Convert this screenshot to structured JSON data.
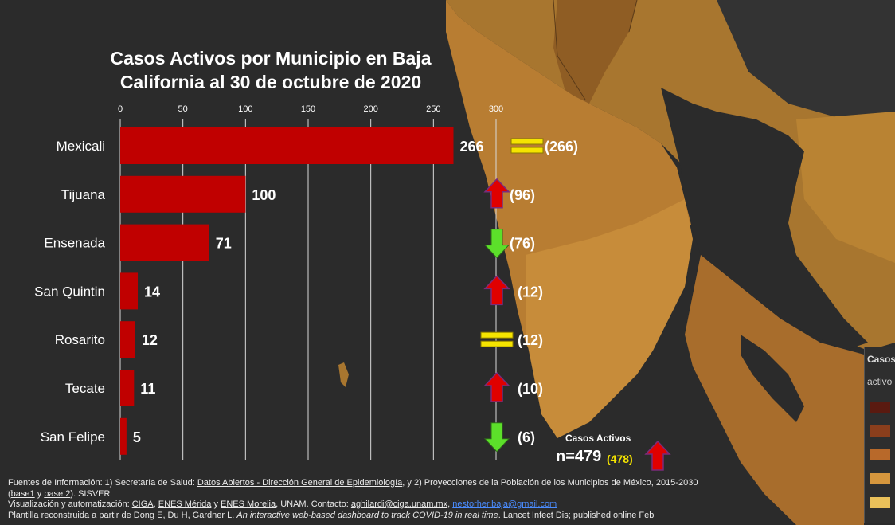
{
  "chart_data": {
    "type": "bar",
    "orientation": "horizontal",
    "title": "Casos Activos por Municipio en Baja California al 30 de octubre de 2020",
    "title_lines": [
      "Casos Activos por Municipio en Baja",
      "California al 30 de octubre de 2020"
    ],
    "categories": [
      "Mexicali",
      "Tijuana",
      "Ensenada",
      "San Quintin",
      "Rosarito",
      "Tecate",
      "San Felipe"
    ],
    "values": [
      266,
      100,
      71,
      14,
      12,
      11,
      5
    ],
    "value_labels": [
      "266",
      "100",
      "71",
      "14",
      "12",
      "11",
      "5"
    ],
    "previous_labels": [
      "(266)",
      "(96)",
      "(76)",
      "(12)",
      "(12)",
      "(10)",
      "(6)"
    ],
    "trends": [
      "equal",
      "up",
      "down",
      "up",
      "equal",
      "up",
      "down"
    ],
    "xlim": [
      0,
      300
    ],
    "ticks": [
      0,
      50,
      100,
      150,
      200,
      250,
      300
    ],
    "tick_labels": [
      "0",
      "50",
      "100",
      "150",
      "200",
      "250",
      "300"
    ],
    "grid": true,
    "bar_color": "#c00000"
  },
  "summary": {
    "title": "Casos Activos",
    "total": "n=479",
    "previous": "(478)",
    "trend": "up"
  },
  "legend": {
    "title": "Casos",
    "subtitle": "activo",
    "colors": [
      "#5a1a10",
      "#8a3e1c",
      "#b8692a",
      "#d5963d",
      "#e9c05a"
    ]
  },
  "colors": {
    "up_arrow": "#e00000",
    "down_arrow": "#5ce02a",
    "equal_sign": "#f5e400",
    "background": "#2b2b2b"
  },
  "footer": {
    "l1_a": "Fuentes de Información: 1) Secretaría de Salud: ",
    "l1_link": "Datos Abiertos - Dirección General de Epidemiología",
    "l1_b": ", y 2) Proyecciones de la Población de los Municipios de México, 2015-2030",
    "l2_a": "(",
    "l2_link1": "base1",
    "l2_b": " y ",
    "l2_link2": "base 2",
    "l2_c": "). SISVER",
    "l3_a": "Visualización y automatización: ",
    "l3_link1": "CIGA",
    "l3_b": ", ",
    "l3_link2": "ENES Mérida",
    "l3_c": " y ",
    "l3_link3": "ENES Morelia",
    "l3_d": ", UNAM. Contacto: ",
    "l3_mail1": "aghilardi@ciga.unam.mx",
    "l3_e": ", ",
    "l3_mail2": "nestorher.baja@gmail.com",
    "l4_a": "Plantilla reconstruida a partir de Dong E, Du H, Gardner L. ",
    "l4_it": "An interactive web-based dashboard to track COVID-19 in real time",
    "l4_b": ". Lancet Infect Dis; published online Feb"
  }
}
